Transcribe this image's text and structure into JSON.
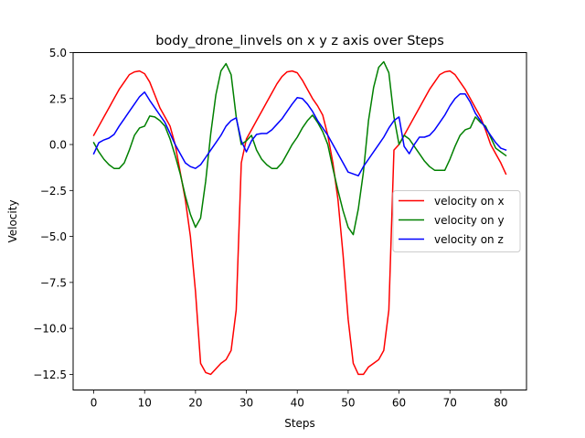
{
  "chart_data": {
    "type": "line",
    "title": "body_drone_linvels on x y z axis over Steps",
    "xlabel": "Steps",
    "ylabel": "Velocity",
    "xlim": [
      -4.05,
      85.05
    ],
    "ylim": [
      -13.35,
      5.0
    ],
    "xticks": [
      0,
      10,
      20,
      30,
      40,
      50,
      60,
      70,
      80
    ],
    "xtick_labels": [
      "0",
      "10",
      "20",
      "30",
      "40",
      "50",
      "60",
      "70",
      "80"
    ],
    "yticks": [
      5.0,
      2.5,
      0.0,
      -2.5,
      -5.0,
      -7.5,
      -10.0,
      -12.5
    ],
    "ytick_labels": [
      "5.0",
      "2.5",
      "0.0",
      "−2.5",
      "−5.0",
      "−7.5",
      "−10.0",
      "−12.5"
    ],
    "grid": false,
    "legend_position": "center-right",
    "x": [
      0,
      1,
      2,
      3,
      4,
      5,
      6,
      7,
      8,
      9,
      10,
      11,
      12,
      13,
      14,
      15,
      16,
      17,
      18,
      19,
      20,
      21,
      22,
      23,
      24,
      25,
      26,
      27,
      28,
      29,
      30,
      31,
      32,
      33,
      34,
      35,
      36,
      37,
      38,
      39,
      40,
      41,
      42,
      43,
      44,
      45,
      46,
      47,
      48,
      49,
      50,
      51,
      52,
      53,
      54,
      55,
      56,
      57,
      58,
      59,
      60,
      61,
      62,
      63,
      64,
      65,
      66,
      67,
      68,
      69,
      70,
      71,
      72,
      73,
      74,
      75,
      76,
      77,
      78,
      79,
      80,
      81
    ],
    "series": [
      {
        "name": "velocity on x",
        "color": "#ff0000",
        "values": [
          0.5,
          1.0,
          1.5,
          2.0,
          2.5,
          3.0,
          3.4,
          3.8,
          3.95,
          4.0,
          3.85,
          3.4,
          2.7,
          2.0,
          1.5,
          1.0,
          0.0,
          -1.5,
          -3.0,
          -5.0,
          -8.0,
          -11.9,
          -12.4,
          -12.5,
          -12.2,
          -11.9,
          -11.7,
          -11.2,
          -9.0,
          -1.0,
          0.3,
          0.8,
          1.3,
          1.8,
          2.3,
          2.8,
          3.3,
          3.7,
          3.95,
          4.0,
          3.9,
          3.5,
          3.0,
          2.5,
          2.1,
          1.6,
          0.5,
          -1.0,
          -3.0,
          -6.0,
          -9.5,
          -11.9,
          -12.5,
          -12.5,
          -12.1,
          -11.9,
          -11.7,
          -11.2,
          -9.0,
          -0.3,
          0.0,
          0.5,
          1.0,
          1.5,
          2.0,
          2.5,
          3.0,
          3.4,
          3.8,
          3.95,
          4.0,
          3.8,
          3.4,
          3.0,
          2.5,
          2.0,
          1.5,
          0.8,
          0.0,
          -0.5,
          -1.0,
          -1.6
        ]
      },
      {
        "name": "velocity on y",
        "color": "#008000",
        "values": [
          0.1,
          -0.4,
          -0.8,
          -1.1,
          -1.3,
          -1.3,
          -1.0,
          -0.3,
          0.5,
          0.9,
          1.0,
          1.55,
          1.5,
          1.3,
          1.0,
          0.3,
          -0.6,
          -1.6,
          -2.8,
          -3.8,
          -4.5,
          -4.0,
          -2.0,
          0.6,
          2.7,
          4.0,
          4.4,
          3.8,
          1.5,
          0.0,
          0.2,
          0.5,
          -0.3,
          -0.8,
          -1.1,
          -1.3,
          -1.3,
          -1.0,
          -0.5,
          0.0,
          0.4,
          0.9,
          1.3,
          1.6,
          1.2,
          0.7,
          0.0,
          -1.3,
          -2.5,
          -3.6,
          -4.5,
          -4.9,
          -3.5,
          -1.5,
          1.3,
          3.1,
          4.2,
          4.5,
          3.9,
          1.5,
          0.0,
          0.5,
          0.3,
          -0.1,
          -0.5,
          -0.9,
          -1.2,
          -1.4,
          -1.4,
          -1.4,
          -0.8,
          -0.1,
          0.5,
          0.8,
          0.9,
          1.5,
          1.2,
          1.0,
          0.4,
          -0.2,
          -0.4,
          -0.6
        ]
      },
      {
        "name": "velocity on z",
        "color": "#0000ff",
        "values": [
          -0.5,
          0.1,
          0.25,
          0.35,
          0.55,
          1.0,
          1.4,
          1.8,
          2.2,
          2.6,
          2.85,
          2.4,
          2.0,
          1.6,
          1.2,
          0.6,
          0.0,
          -0.5,
          -1.0,
          -1.2,
          -1.3,
          -1.1,
          -0.7,
          -0.3,
          0.1,
          0.5,
          1.0,
          1.3,
          1.45,
          0.2,
          -0.4,
          0.2,
          0.55,
          0.6,
          0.6,
          0.8,
          1.1,
          1.4,
          1.8,
          2.2,
          2.55,
          2.5,
          2.2,
          1.8,
          1.3,
          0.9,
          0.5,
          0.0,
          -0.5,
          -1.0,
          -1.5,
          -1.6,
          -1.7,
          -1.2,
          -0.8,
          -0.4,
          0.0,
          0.4,
          0.9,
          1.3,
          1.5,
          -0.1,
          -0.5,
          0.0,
          0.4,
          0.4,
          0.5,
          0.8,
          1.2,
          1.6,
          2.1,
          2.5,
          2.75,
          2.75,
          2.3,
          1.7,
          1.3,
          0.9,
          0.5,
          0.1,
          -0.2,
          -0.3
        ]
      }
    ]
  }
}
